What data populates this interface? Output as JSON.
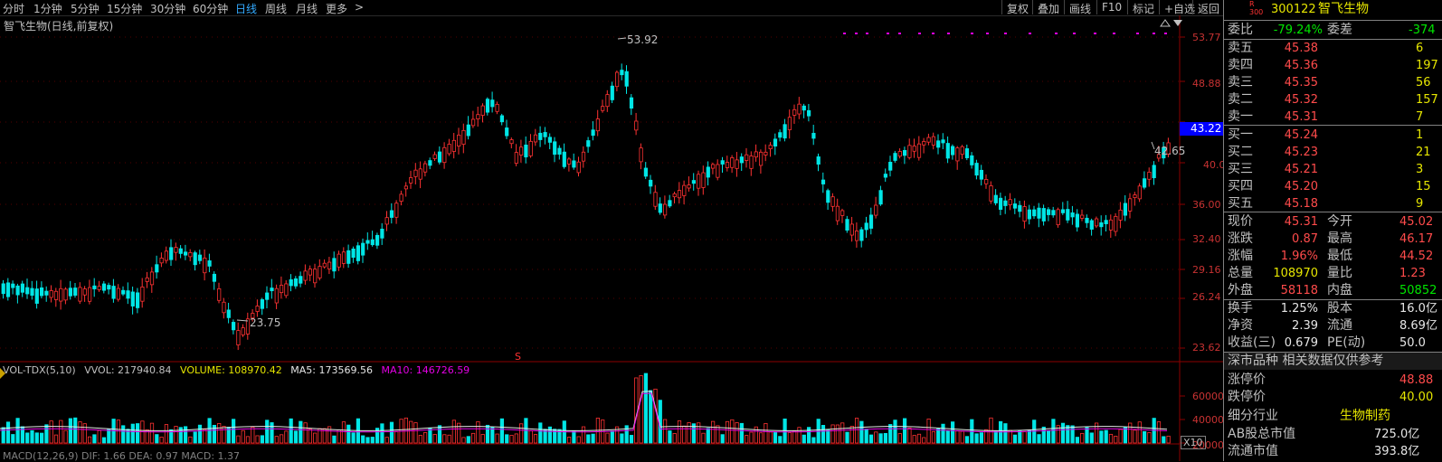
{
  "toolbar": {
    "periods": [
      "分时",
      "1分钟",
      "5分钟",
      "15分钟",
      "30分钟",
      "60分钟",
      "日线",
      "周线",
      "月线",
      "更多"
    ],
    "more_arrow": ">",
    "right_buttons": [
      "复权",
      "叠加",
      "画线",
      "F10",
      "标记",
      "+自选",
      "返回"
    ]
  },
  "chart": {
    "title": "智飞生物(日线,前复权)",
    "y_ticks": [
      "53.77",
      "48.88",
      "44.41",
      "40.00",
      "36.00",
      "32.40",
      "29.16",
      "26.24",
      "23.62"
    ],
    "current_price": "43.22",
    "high_label": "53.92",
    "low_label": "23.75",
    "last_label": "42.65",
    "event_marker": "S"
  },
  "indicator": {
    "name": "VOL-TDX(5,10)",
    "vvol": "VVOL: 217940.84",
    "volume": "VOLUME: 108970.42",
    "ma5": "MA5: 173569.56",
    "ma10": "MA10: 146726.59",
    "y_ticks": [
      "60000",
      "40000",
      "20000"
    ],
    "unit": "X10",
    "macd_partial": "MACD(12,26,9) DIF: 1.66 DEA: 0.97 MACD: 1.37"
  },
  "quote": {
    "code_badge": "R\n300",
    "code": "300122",
    "name": "智飞生物",
    "webi_label": "委比",
    "webi_value": "-79.24%",
    "wecha_label": "委差",
    "wecha_value": "-374",
    "sells": [
      {
        "label": "卖五",
        "price": "45.38",
        "vol": "6"
      },
      {
        "label": "卖四",
        "price": "45.36",
        "vol": "197"
      },
      {
        "label": "卖三",
        "price": "45.35",
        "vol": "56"
      },
      {
        "label": "卖二",
        "price": "45.32",
        "vol": "157"
      },
      {
        "label": "卖一",
        "price": "45.31",
        "vol": "7"
      }
    ],
    "buys": [
      {
        "label": "买一",
        "price": "45.24",
        "vol": "1"
      },
      {
        "label": "买二",
        "price": "45.23",
        "vol": "21"
      },
      {
        "label": "买三",
        "price": "45.21",
        "vol": "3"
      },
      {
        "label": "买四",
        "price": "45.20",
        "vol": "15"
      },
      {
        "label": "买五",
        "price": "45.18",
        "vol": "9"
      }
    ],
    "stats": [
      {
        "l1": "现价",
        "v1": "45.31",
        "c1": "red",
        "l2": "今开",
        "v2": "45.02",
        "c2": "red"
      },
      {
        "l1": "涨跌",
        "v1": "0.87",
        "c1": "red",
        "l2": "最高",
        "v2": "46.17",
        "c2": "red"
      },
      {
        "l1": "涨幅",
        "v1": "1.96%",
        "c1": "red",
        "l2": "最低",
        "v2": "44.52",
        "c2": "red"
      },
      {
        "l1": "总量",
        "v1": "108970",
        "c1": "yellow",
        "l2": "量比",
        "v2": "1.23",
        "c2": "red"
      },
      {
        "l1": "外盘",
        "v1": "58118",
        "c1": "red",
        "l2": "内盘",
        "v2": "50852",
        "c2": "green"
      }
    ],
    "fund": [
      {
        "l1": "换手",
        "v1": "1.25%",
        "l2": "股本",
        "v2": "16.0亿"
      },
      {
        "l1": "净资",
        "v1": "2.39",
        "l2": "流通",
        "v2": "8.69亿"
      },
      {
        "l1": "收益(三)",
        "v1": "0.679",
        "l2": "PE(动)",
        "v2": "50.0"
      }
    ],
    "market_note": "深市品种  相关数据仅供参考",
    "limit_up_label": "涨停价",
    "limit_up": "48.88",
    "limit_down_label": "跌停价",
    "limit_down": "40.00",
    "industry_label": "细分行业",
    "industry": "生物制药",
    "ab_cap_label": "AB股总市值",
    "ab_cap": "725.0亿",
    "float_cap_label": "流通市值",
    "float_cap": "393.8亿"
  },
  "colors": {
    "up": "#ff3232",
    "down": "#00e6e6",
    "ma5": "#e6e6e6",
    "ma10": "#e600e6",
    "ma20": "#e6e600",
    "grid": "#8b0000"
  },
  "chart_data": {
    "type": "candlestick",
    "y_range": [
      23.62,
      53.77
    ],
    "summary": {
      "high": 53.92,
      "low": 23.75,
      "last": 42.65,
      "current": 43.22
    }
  }
}
